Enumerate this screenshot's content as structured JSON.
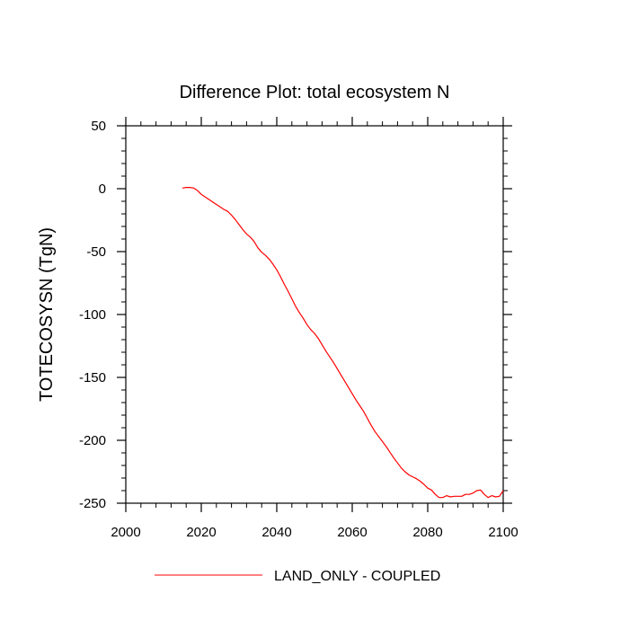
{
  "chart_data": {
    "type": "line",
    "title": "Difference Plot: total ecosystem N",
    "xlabel": "",
    "ylabel": "TOTECOSYSN  (TgN)",
    "xlim": [
      2000,
      2100
    ],
    "ylim": [
      -250,
      50
    ],
    "x_ticks": [
      "2000",
      "2020",
      "2040",
      "2060",
      "2080",
      "2100"
    ],
    "y_ticks": [
      "50",
      "0",
      "-50",
      "-100",
      "-150",
      "-200",
      "-250"
    ],
    "grid": false,
    "legend_position": "bottom",
    "series": [
      {
        "name": "LAND_ONLY - COUPLED",
        "color": "#ff0000",
        "x": [
          2015,
          2016,
          2017,
          2018,
          2019,
          2020,
          2021,
          2022,
          2023,
          2024,
          2025,
          2026,
          2027,
          2028,
          2029,
          2030,
          2031,
          2032,
          2033,
          2034,
          2035,
          2036,
          2037,
          2038,
          2039,
          2040,
          2041,
          2042,
          2043,
          2044,
          2045,
          2046,
          2047,
          2048,
          2049,
          2050,
          2051,
          2052,
          2053,
          2054,
          2055,
          2056,
          2057,
          2058,
          2059,
          2060,
          2061,
          2062,
          2063,
          2064,
          2065,
          2066,
          2067,
          2068,
          2069,
          2070,
          2071,
          2072,
          2073,
          2074,
          2075,
          2076,
          2077,
          2078,
          2079,
          2080,
          2081,
          2082,
          2083,
          2084,
          2085,
          2086,
          2087,
          2088,
          2089,
          2090,
          2091,
          2092,
          2093,
          2094,
          2095,
          2096,
          2097,
          2098,
          2099,
          2100
        ],
        "values": [
          0.5,
          1,
          1,
          0.5,
          -1.5,
          -4.5,
          -6.5,
          -8.5,
          -10.5,
          -12.5,
          -14.5,
          -16.5,
          -18,
          -21,
          -24.5,
          -28.5,
          -32.5,
          -36,
          -38.5,
          -42,
          -47,
          -50.5,
          -53,
          -56,
          -60,
          -64.5,
          -70,
          -76,
          -81.5,
          -87.5,
          -93.5,
          -98.5,
          -103,
          -108,
          -112,
          -115,
          -119,
          -124,
          -129,
          -133.5,
          -138,
          -143,
          -148,
          -153,
          -158,
          -163,
          -168,
          -172.5,
          -177,
          -182.5,
          -188,
          -193,
          -197,
          -201,
          -205,
          -209.5,
          -214,
          -218,
          -222,
          -225,
          -227.5,
          -229,
          -230.5,
          -232.5,
          -235,
          -238,
          -239.5,
          -243,
          -245.5,
          -245.5,
          -244,
          -245,
          -244.5,
          -244.5,
          -244.5,
          -243,
          -243,
          -242,
          -240,
          -239.5,
          -243,
          -245.5,
          -244,
          -245,
          -244.5,
          -240
        ]
      }
    ]
  }
}
